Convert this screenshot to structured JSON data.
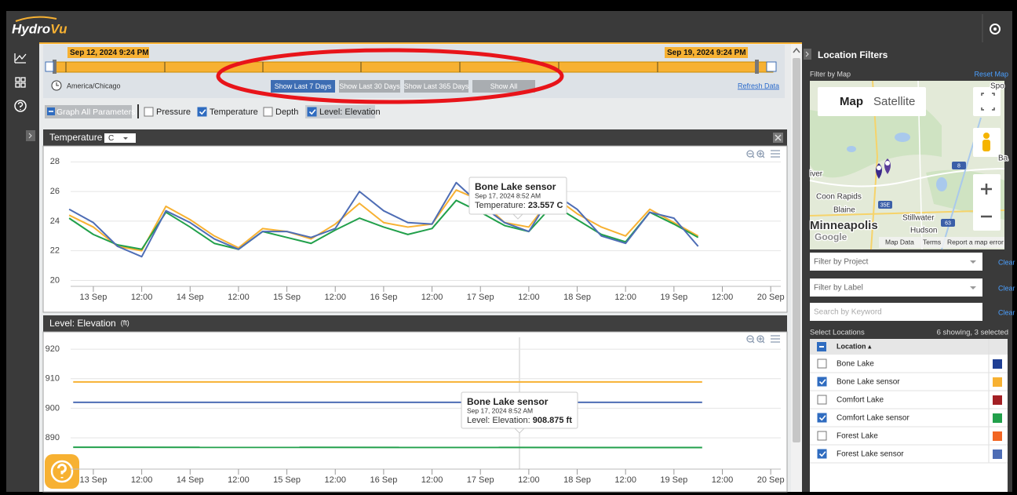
{
  "header": {
    "logo": [
      "Hydro",
      "Vu"
    ]
  },
  "time_range": {
    "start": "Sep 12, 2024 9:24 PM",
    "end": "Sep 19, 2024 9:24 PM",
    "timezone": "America/Chicago",
    "buttons": [
      {
        "label": "Show Last 7 Days",
        "active": true
      },
      {
        "label": "Show Last 30 Days",
        "active": false
      },
      {
        "label": "Show Last 365 Days",
        "active": false
      },
      {
        "label": "Show All",
        "active": false
      }
    ],
    "refresh": "Refresh Data"
  },
  "parameters": {
    "graph_all": "Graph All Parameters",
    "items": [
      {
        "label": "Pressure",
        "checked": false
      },
      {
        "label": "Temperature",
        "checked": true
      },
      {
        "label": "Depth",
        "checked": false
      },
      {
        "label": "Level: Elevation",
        "checked": true
      }
    ]
  },
  "charts": [
    {
      "type": "line",
      "title": "Temperature",
      "unit": "C",
      "xlim": [
        "2024-09-12T13:30",
        "2024-09-20T02:30"
      ],
      "xticks": [
        {
          "value": "2024-09-13T00:00",
          "label": "13 Sep"
        },
        {
          "value": "2024-09-13T12:00",
          "label": "12:00"
        },
        {
          "value": "2024-09-14T00:00",
          "label": "14 Sep"
        },
        {
          "value": "2024-09-14T12:00",
          "label": "12:00"
        },
        {
          "value": "2024-09-15T00:00",
          "label": "15 Sep"
        },
        {
          "value": "2024-09-15T12:00",
          "label": "12:00"
        },
        {
          "value": "2024-09-16T00:00",
          "label": "16 Sep"
        },
        {
          "value": "2024-09-16T12:00",
          "label": "12:00"
        },
        {
          "value": "2024-09-17T00:00",
          "label": "17 Sep"
        },
        {
          "value": "2024-09-17T12:00",
          "label": "12:00"
        },
        {
          "value": "2024-09-18T00:00",
          "label": "18 Sep"
        },
        {
          "value": "2024-09-18T12:00",
          "label": "12:00"
        },
        {
          "value": "2024-09-19T00:00",
          "label": "19 Sep"
        },
        {
          "value": "2024-09-19T12:00",
          "label": "12:00"
        },
        {
          "value": "2024-09-20T00:00",
          "label": "20 Sep"
        }
      ],
      "ylim": [
        19.6,
        28.6
      ],
      "yticks": [
        20,
        22,
        24,
        26,
        28
      ],
      "grid": true,
      "x": [
        "2024-09-12T18:00",
        "2024-09-13T00:00",
        "2024-09-13T06:00",
        "2024-09-13T12:00",
        "2024-09-13T18:00",
        "2024-09-14T00:00",
        "2024-09-14T06:00",
        "2024-09-14T12:00",
        "2024-09-14T18:00",
        "2024-09-15T00:00",
        "2024-09-15T06:00",
        "2024-09-15T12:00",
        "2024-09-15T18:00",
        "2024-09-16T00:00",
        "2024-09-16T06:00",
        "2024-09-16T12:00",
        "2024-09-16T18:00",
        "2024-09-17T00:00",
        "2024-09-17T06:00",
        "2024-09-17T12:00",
        "2024-09-17T18:00",
        "2024-09-18T00:00",
        "2024-09-18T06:00",
        "2024-09-18T12:00",
        "2024-09-18T18:00",
        "2024-09-19T00:00",
        "2024-09-19T06:00"
      ],
      "series": [
        {
          "color": "#f7b132",
          "values": [
            24.4,
            23.6,
            22.3,
            22.0,
            25.0,
            24.1,
            23.0,
            22.2,
            23.5,
            23.3,
            22.8,
            23.8,
            25.2,
            23.9,
            23.6,
            23.8,
            26.1,
            25.4,
            23.9,
            23.6,
            25.7,
            24.5,
            23.6,
            23.0,
            24.8,
            23.9,
            23.0
          ]
        },
        {
          "color": "#22a04b",
          "values": [
            24.2,
            23.1,
            22.4,
            22.1,
            24.6,
            23.6,
            22.5,
            22.1,
            23.3,
            22.9,
            22.5,
            23.4,
            24.2,
            23.6,
            23.1,
            23.5,
            25.4,
            24.6,
            23.7,
            23.3,
            25.1,
            24.1,
            23.1,
            22.6,
            24.6,
            23.8,
            22.9
          ]
        },
        {
          "color": "#4e6db5",
          "values": [
            24.8,
            23.9,
            22.3,
            21.6,
            24.7,
            23.9,
            22.8,
            22.1,
            23.3,
            23.3,
            22.9,
            23.5,
            26.0,
            24.7,
            23.9,
            23.8,
            26.6,
            25.1,
            23.9,
            23.3,
            25.9,
            24.8,
            23.0,
            22.5,
            24.6,
            24.2,
            22.3
          ]
        }
      ],
      "tooltip": {
        "series": "Bone Lake sensor",
        "time": "Sep 17, 2024 8:52 AM",
        "label": "Temperature:",
        "value": "23.557 C"
      }
    },
    {
      "type": "line",
      "title": "Level: Elevation",
      "unit": "(ft)",
      "xlim": [
        "2024-09-12T13:30",
        "2024-09-20T02:30"
      ],
      "xticks": [
        {
          "value": "2024-09-13T00:00",
          "label": "13 Sep"
        },
        {
          "value": "2024-09-13T12:00",
          "label": "12:00"
        },
        {
          "value": "2024-09-14T00:00",
          "label": "14 Sep"
        },
        {
          "value": "2024-09-14T12:00",
          "label": "12:00"
        },
        {
          "value": "2024-09-15T00:00",
          "label": "15 Sep"
        },
        {
          "value": "2024-09-15T12:00",
          "label": "12:00"
        },
        {
          "value": "2024-09-16T00:00",
          "label": "16 Sep"
        },
        {
          "value": "2024-09-16T12:00",
          "label": "12:00"
        },
        {
          "value": "2024-09-17T00:00",
          "label": "17 Sep"
        },
        {
          "value": "2024-09-17T12:00",
          "label": "12:00"
        },
        {
          "value": "2024-09-18T00:00",
          "label": "18 Sep"
        },
        {
          "value": "2024-09-18T12:00",
          "label": "12:00"
        },
        {
          "value": "2024-09-19T00:00",
          "label": "19 Sep"
        },
        {
          "value": "2024-09-19T12:00",
          "label": "12:00"
        },
        {
          "value": "2024-09-20T00:00",
          "label": "20 Sep"
        }
      ],
      "ylim": [
        879.4,
        924
      ],
      "yticks": [
        890,
        900,
        910,
        920
      ],
      "grid": true,
      "x": [
        "2024-09-12T19:00",
        "2024-09-19T07:00"
      ],
      "series": [
        {
          "color": "#f7b132",
          "values": [
            908.9,
            908.9
          ]
        },
        {
          "color": "#4e6db5",
          "values": [
            902.0,
            902.0
          ]
        },
        {
          "color": "#22a04b",
          "values": [
            886.8,
            886.7
          ]
        }
      ],
      "tooltip": {
        "series": "Bone Lake sensor",
        "time": "Sep 17, 2024 8:52 AM",
        "label": "Level: Elevation:",
        "value": "908.875 ft"
      }
    }
  ],
  "location_filters": {
    "title": "Location Filters",
    "filter_by_map": "Filter by Map",
    "reset_map": "Reset Map",
    "map": {
      "tabs": [
        "Map",
        "Satellite"
      ],
      "places": [
        "Spo",
        "iver",
        "Coon Rapids",
        "Blaine",
        "Stillwater",
        "Minneapolis",
        "Hudson",
        "Ba"
      ],
      "shields": [
        "35E",
        "8",
        "63"
      ],
      "attribution": "Google",
      "footer": [
        "Map Data",
        "Terms",
        "Report a map error"
      ]
    },
    "filters": [
      {
        "placeholder": "Filter by Project",
        "clear": "Clear"
      },
      {
        "placeholder": "Filter by Label",
        "clear": "Clear"
      },
      {
        "placeholder": "Search by Keyword",
        "clear": "Clear"
      }
    ],
    "select_locations": "Select Locations",
    "summary": "6 showing, 3 selected",
    "column": "Location ▴",
    "locations": [
      {
        "name": "Bone Lake",
        "checked": false,
        "color": "#1f3f94"
      },
      {
        "name": "Bone Lake sensor",
        "checked": true,
        "color": "#f7b132"
      },
      {
        "name": "Comfort Lake",
        "checked": false,
        "color": "#a32024"
      },
      {
        "name": "Comfort Lake sensor",
        "checked": true,
        "color": "#22a04b"
      },
      {
        "name": "Forest Lake",
        "checked": false,
        "color": "#f26522"
      },
      {
        "name": "Forest Lake sensor",
        "checked": true,
        "color": "#4e6db5"
      }
    ]
  }
}
